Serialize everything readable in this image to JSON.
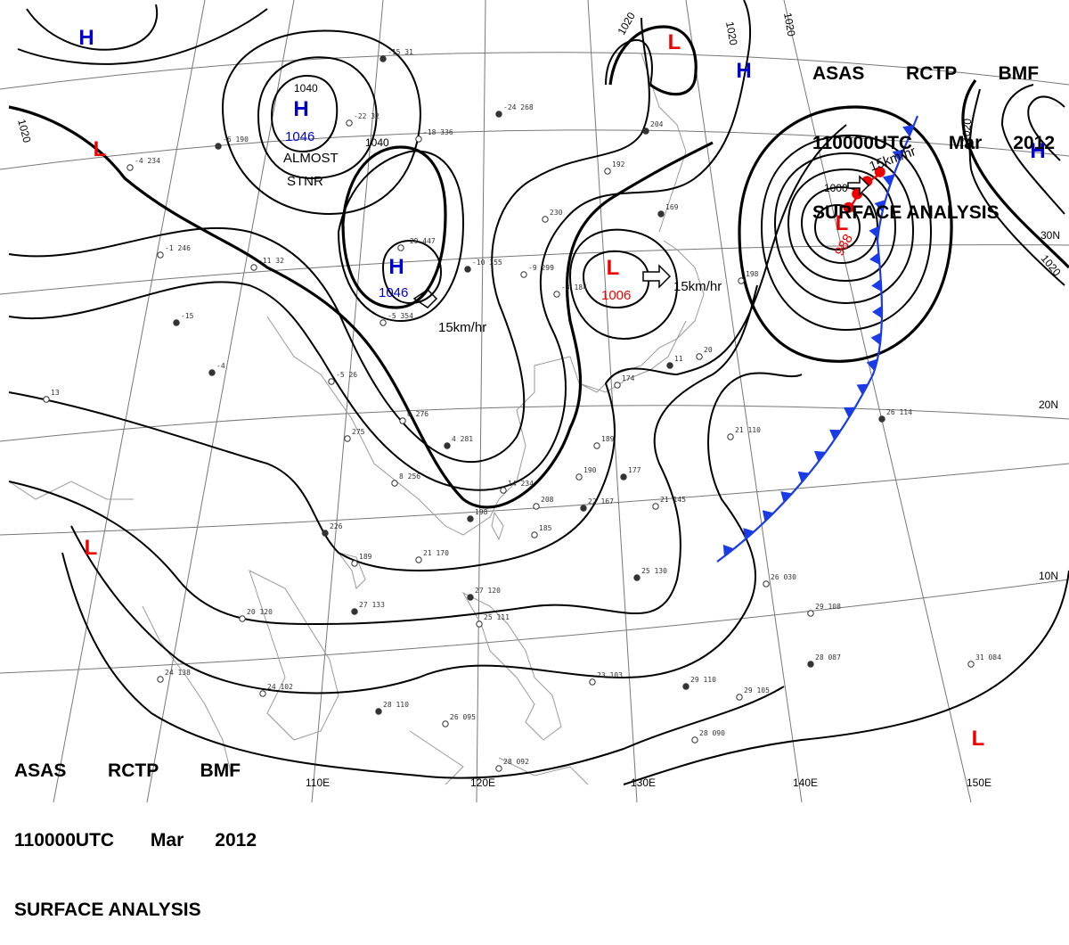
{
  "header": {
    "line1": [
      "ASAS",
      "RCTP",
      "BMF"
    ],
    "line2": [
      "110000UTC",
      "Mar",
      "2012"
    ],
    "line3": "SURFACE ANALYSIS"
  },
  "colors": {
    "high": "#0000cc",
    "low": "#ee0000",
    "cold_front": "#1a3ce6",
    "warm_front": "#ee0000",
    "isobar": "#000000"
  },
  "pressure_centers": [
    {
      "id": "h1",
      "type": "H",
      "value": ""
    },
    {
      "id": "h2",
      "type": "H",
      "value": "1046"
    },
    {
      "id": "h3",
      "type": "H",
      "value": "1046"
    },
    {
      "id": "h4",
      "type": "H",
      "value": ""
    },
    {
      "id": "h5",
      "type": "H",
      "value": ""
    },
    {
      "id": "l1",
      "type": "L",
      "value": ""
    },
    {
      "id": "l2",
      "type": "L",
      "value": ""
    },
    {
      "id": "l3",
      "type": "L",
      "value": "1006"
    },
    {
      "id": "l4",
      "type": "L",
      "value": "988"
    },
    {
      "id": "l5",
      "type": "L",
      "value": ""
    },
    {
      "id": "l6",
      "type": "L",
      "value": ""
    }
  ],
  "isobar_labels": [
    "1020",
    "1040",
    "1040",
    "1020",
    "1020",
    "1020",
    "1020",
    "1020",
    "1000"
  ],
  "motion_labels": [
    "ALMOST",
    "STNR",
    "15km/hr",
    "15km/hr",
    "15km/hr"
  ],
  "lon_labels": [
    "110E",
    "120E",
    "130E",
    "140E",
    "150E"
  ],
  "lat_labels": [
    "30N",
    "20N",
    "10N"
  ],
  "station_samples": [
    "-15 31",
    "-22 32",
    "-18 336",
    "-24 268",
    "-1 246",
    "-11 32",
    "-15",
    "-29 447",
    "-5 354",
    "-10 355",
    "-9 299",
    "-3 184",
    "-6 190",
    "-4 234",
    "13",
    "-4",
    "-5 26",
    "6 276",
    "4 281",
    "275",
    "8 256",
    "226",
    "189",
    "14 234",
    "198",
    "21 170",
    "20 120",
    "27 133",
    "24 102",
    "24 138",
    "28 110",
    "26 095",
    "28 092",
    "27 120",
    "25 111",
    "23 103",
    "29 110",
    "29 105",
    "28 090",
    "25 130",
    "26 030",
    "29 108",
    "28 087",
    "31 084",
    "21 145",
    "22 167",
    "190",
    "189",
    "177",
    "185",
    "208",
    "204",
    "192",
    "230",
    "169",
    "198",
    "174",
    "11",
    "20",
    "21 110",
    "26 114"
  ]
}
